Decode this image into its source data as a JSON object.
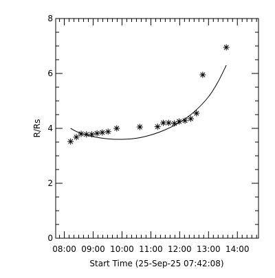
{
  "chart_data": {
    "type": "scatter",
    "title": "",
    "xlabel": "Start Time (25-Sep-25 07:42:08)",
    "ylabel": "R/Rs",
    "xlim": [
      "07:42",
      "14:44"
    ],
    "ylim": [
      0,
      8
    ],
    "x_ticks": [
      "08:00",
      "09:00",
      "10:00",
      "11:00",
      "12:00",
      "13:00",
      "14:00"
    ],
    "y_ticks": [
      0,
      2,
      4,
      6,
      8
    ],
    "grid": false,
    "legend": "none",
    "colors": {
      "axes": "#000000",
      "markers": "#000000",
      "fit_line": "#000000",
      "background": "#ffffff"
    },
    "series": [
      {
        "kind": "points",
        "marker": "asterisk",
        "x": [
          "08:13",
          "08:25",
          "08:35",
          "08:46",
          "08:57",
          "09:08",
          "09:19",
          "09:31",
          "09:49",
          "10:37",
          "11:14",
          "11:26",
          "11:37",
          "11:49",
          "11:59",
          "12:11",
          "12:23",
          "12:35",
          "12:48",
          "13:37"
        ],
        "y": [
          3.52,
          3.68,
          3.8,
          3.78,
          3.78,
          3.82,
          3.85,
          3.88,
          4.0,
          4.05,
          4.06,
          4.2,
          4.2,
          4.18,
          4.25,
          4.28,
          4.35,
          4.55,
          5.95,
          6.95
        ]
      },
      {
        "kind": "fit",
        "x": [
          "08:13",
          "08:30",
          "09:00",
          "09:30",
          "10:00",
          "10:30",
          "11:00",
          "11:30",
          "12:00",
          "12:30",
          "13:00",
          "13:20",
          "13:37"
        ],
        "y": [
          4.0,
          3.85,
          3.7,
          3.62,
          3.6,
          3.64,
          3.76,
          3.95,
          4.22,
          4.6,
          5.15,
          5.7,
          6.3
        ]
      }
    ]
  }
}
